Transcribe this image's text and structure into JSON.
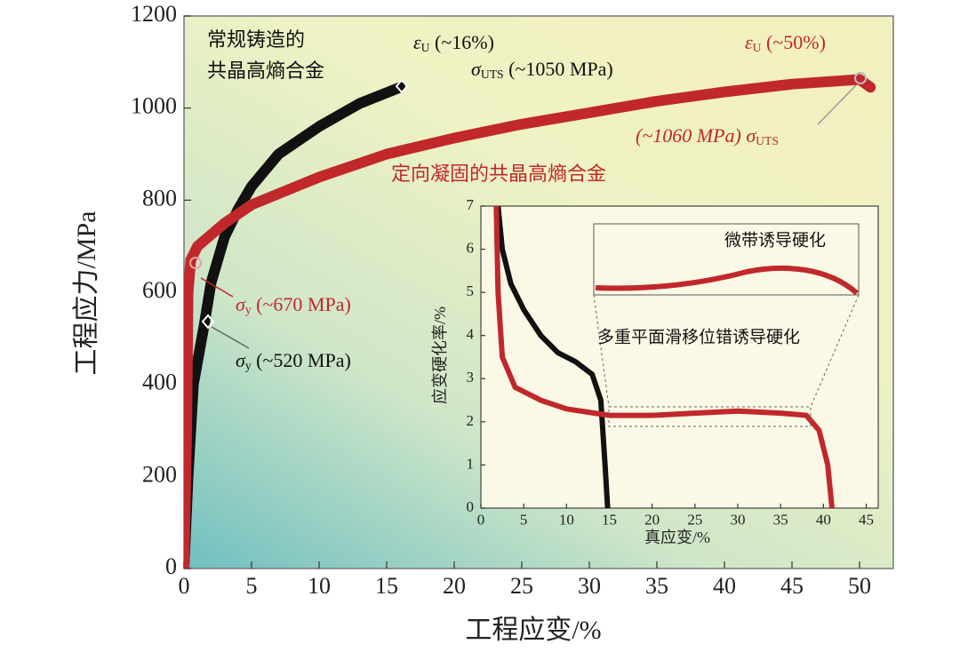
{
  "chart_data": [
    {
      "type": "line",
      "xlabel": "工程应变/%",
      "ylabel": "工程应力/MPa",
      "xlim": [
        0,
        52.5
      ],
      "ylim": [
        0,
        1200
      ],
      "xticks": [
        0,
        5,
        10,
        15,
        20,
        25,
        30,
        35,
        40,
        45,
        50
      ],
      "yticks": [
        0,
        200,
        400,
        600,
        800,
        1000,
        1200
      ],
      "series": [
        {
          "color": "#111111",
          "x": [
            0,
            0.3,
            0.7,
            1.5,
            2,
            3,
            4,
            5,
            7,
            10,
            13,
            16
          ],
          "values": [
            0,
            200,
            400,
            530,
            620,
            720,
            780,
            830,
            900,
            960,
            1010,
            1045
          ]
        },
        {
          "color": "#c0282b",
          "x": [
            0,
            0.2,
            0.3,
            0.5,
            1,
            3,
            5,
            10,
            15,
            20,
            25,
            30,
            35,
            40,
            45,
            50,
            50.8
          ],
          "values": [
            0,
            300,
            600,
            670,
            700,
            750,
            790,
            850,
            900,
            935,
            965,
            990,
            1015,
            1035,
            1052,
            1062,
            1045
          ]
        }
      ],
      "annotations": [
        {
          "color": "#111111",
          "lines": [
            "常规铸造的",
            "共晶高熵合金"
          ]
        },
        {
          "color": "#111111",
          "parts": [
            {
              "text": "ε"
            },
            {
              "text": "U",
              "baseline": "sub"
            },
            {
              "text": " (~16%)"
            }
          ]
        },
        {
          "color": "#111111",
          "parts": [
            {
              "text": "σ"
            },
            {
              "text": "UTS",
              "baseline": "sub"
            },
            {
              "text": " (~1050 MPa)"
            }
          ]
        },
        {
          "color": "#c0282b",
          "parts": [
            {
              "text": "ε"
            },
            {
              "text": "U",
              "baseline": "sub"
            },
            {
              "text": " (~50%)"
            }
          ]
        },
        {
          "color": "#c0282b",
          "parts": [
            {
              "text": "(~1060 MPa) σ"
            },
            {
              "text": "UTS",
              "baseline": "sub"
            }
          ]
        },
        {
          "color": "#c0282b",
          "lines": [
            "定向凝固的共晶高熵合金"
          ]
        },
        {
          "color": "#c0282b",
          "parts": [
            {
              "text": "σ"
            },
            {
              "text": "y",
              "baseline": "sub"
            },
            {
              "text": " (~670 MPa)"
            }
          ]
        },
        {
          "color": "#111111",
          "parts": [
            {
              "text": "σ"
            },
            {
              "text": "y",
              "baseline": "sub"
            },
            {
              "text": " (~520 MPa)"
            }
          ]
        }
      ]
    },
    {
      "type": "line",
      "xlabel": "真应变/%",
      "ylabel": "应变硬化率/%",
      "xlim": [
        0,
        46.4
      ],
      "ylim": [
        0,
        7
      ],
      "xticks": [
        0,
        5,
        10,
        15,
        20,
        25,
        30,
        35,
        40,
        45
      ],
      "yticks": [
        0,
        1,
        2,
        3,
        4,
        5,
        6,
        7
      ],
      "series": [
        {
          "color": "#111111",
          "x": [
            2,
            2.5,
            3.5,
            5,
            7,
            9,
            11,
            13,
            14,
            14.5,
            14.8
          ],
          "values": [
            7,
            6,
            5.2,
            4.6,
            4.0,
            3.6,
            3.4,
            3.1,
            2.5,
            1,
            0
          ]
        },
        {
          "color": "#c0282b",
          "x": [
            1.8,
            2,
            2.5,
            4,
            7,
            10,
            15,
            20,
            25,
            30,
            35,
            38,
            39.5,
            40.5,
            41
          ],
          "values": [
            7,
            5,
            3.5,
            2.8,
            2.5,
            2.3,
            2.15,
            2.15,
            2.2,
            2.25,
            2.2,
            2.15,
            1.8,
            1,
            0
          ]
        }
      ],
      "annotations": [
        {
          "color": "#111111",
          "lines": [
            "微带诱导硬化"
          ]
        },
        {
          "color": "#111111",
          "lines": [
            "多重平面滑移位错诱导硬化"
          ]
        }
      ]
    }
  ]
}
